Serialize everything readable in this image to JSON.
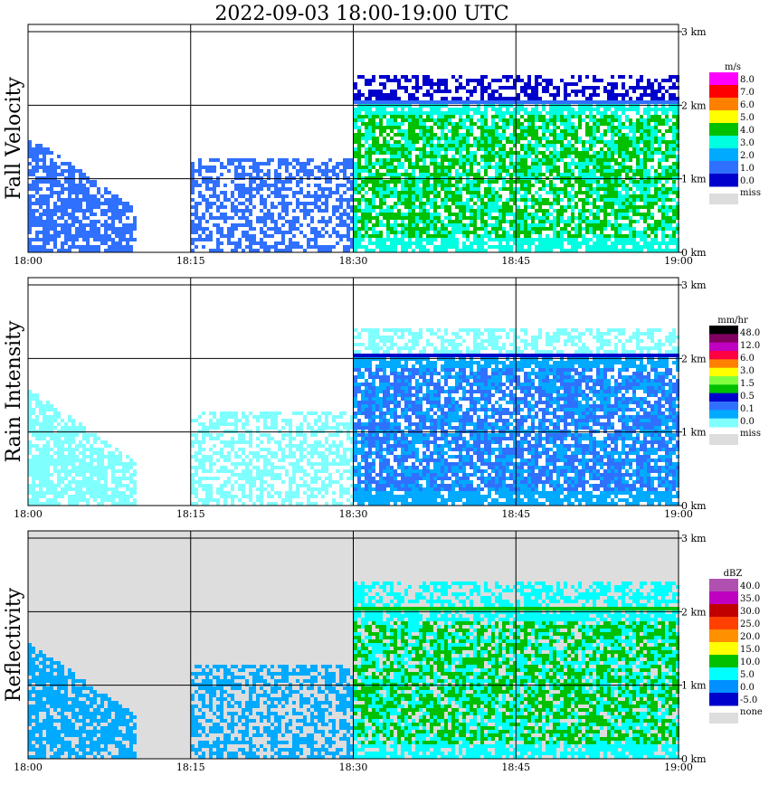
{
  "title": "2022-09-03   18:00-19:00 UTC",
  "chart_data": [
    {
      "type": "heatmap",
      "ylabel": "Fall Velocity",
      "x_ticks": [
        "18:00",
        "18:15",
        "18:30",
        "18:45",
        "19:00"
      ],
      "y_ticks": [
        "0 km",
        "1 km",
        "2 km",
        "3 km"
      ],
      "xlim": [
        "18:00",
        "19:00"
      ],
      "ylim_km": [
        0,
        3
      ],
      "grid": true,
      "colorbar": {
        "unit": "m/s",
        "labels": [
          "8.0",
          "7.0",
          "6.0",
          "5.0",
          "4.0",
          "3.0",
          "2.0",
          "1.0",
          "0.0"
        ],
        "colors": [
          "#ff00ff",
          "#ff0000",
          "#ff8000",
          "#ffff00",
          "#00c000",
          "#00ffe0",
          "#00aaff",
          "#3070ff",
          "#0000cc"
        ],
        "missing_label": "miss",
        "missing_color": "#dddddd"
      }
    },
    {
      "type": "heatmap",
      "ylabel": "Rain Intensity",
      "x_ticks": [
        "18:00",
        "18:15",
        "18:30",
        "18:45",
        "19:00"
      ],
      "y_ticks": [
        "0 km",
        "1 km",
        "2 km",
        "3 km"
      ],
      "xlim": [
        "18:00",
        "19:00"
      ],
      "ylim_km": [
        0,
        3
      ],
      "grid": true,
      "colorbar": {
        "unit": "mm/hr",
        "labels": [
          "48.0",
          "12.0",
          "6.0",
          "3.0",
          "1.5",
          "0.5",
          "0.1",
          "0.0"
        ],
        "colors": [
          "#000000",
          "#800060",
          "#c000c0",
          "#ff0040",
          "#ff8000",
          "#ffff00",
          "#80ff40",
          "#00c000",
          "#0000cc",
          "#3070ff",
          "#00aaff",
          "#80ffff"
        ],
        "missing_label": "miss",
        "missing_color": "#dddddd"
      }
    },
    {
      "type": "heatmap",
      "ylabel": "Reflectivity",
      "x_ticks": [
        "18:00",
        "18:15",
        "18:30",
        "18:45",
        "19:00"
      ],
      "y_ticks": [
        "0 km",
        "1 km",
        "2 km",
        "3 km"
      ],
      "xlim": [
        "18:00",
        "19:00"
      ],
      "ylim_km": [
        0,
        3
      ],
      "grid": true,
      "colorbar": {
        "unit": "dBZ",
        "labels": [
          "40.0",
          "35.0",
          "30.0",
          "25.0",
          "20.0",
          "15.0",
          "10.0",
          "5.0",
          "0.0",
          "-5.0"
        ],
        "colors": [
          "#b050b0",
          "#c000c0",
          "#c00000",
          "#ff4000",
          "#ff9000",
          "#ffff00",
          "#00c000",
          "#00ffff",
          "#0090ff",
          "#0000cc"
        ],
        "missing_label": "none",
        "missing_color": "#dddddd"
      }
    }
  ]
}
